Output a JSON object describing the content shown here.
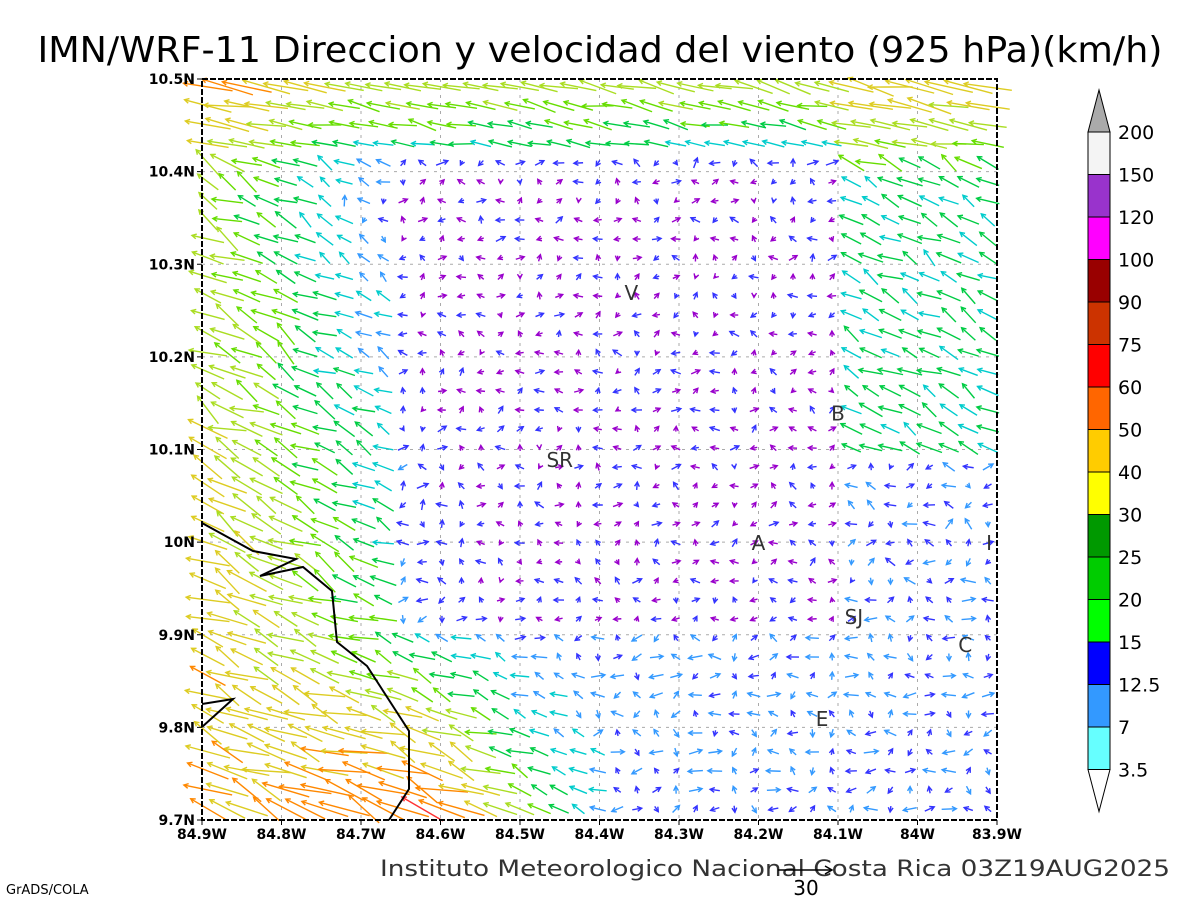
{
  "title": "IMN/WRF-11 Direccion y velocidad del viento (925 hPa)(km/h)",
  "footer": "Instituto Meteorologico Nacional Costa Rica  03Z19AUG2025",
  "credit": "GrADS/COLA",
  "reference_vector_label": "30",
  "x_ticks": [
    "84.9W",
    "84.8W",
    "84.7W",
    "84.6W",
    "84.5W",
    "84.4W",
    "84.3W",
    "84.2W",
    "84.1W",
    "84W",
    "83.9W"
  ],
  "y_ticks": [
    "10.5N",
    "10.4N",
    "10.3N",
    "10.2N",
    "10.1N",
    "10N",
    "9.9N",
    "9.8N",
    "9.7N"
  ],
  "places": [
    {
      "label": "V",
      "lon": -84.36,
      "lat": 10.27
    },
    {
      "label": "B",
      "lon": -84.1,
      "lat": 10.14
    },
    {
      "label": "SR",
      "lon": -84.45,
      "lat": 10.09
    },
    {
      "label": "A",
      "lon": -84.2,
      "lat": 10.0
    },
    {
      "label": "I",
      "lon": -83.91,
      "lat": 10.0
    },
    {
      "label": "SJ",
      "lon": -84.08,
      "lat": 9.92
    },
    {
      "label": "C",
      "lon": -83.94,
      "lat": 9.89
    },
    {
      "label": "E",
      "lon": -84.12,
      "lat": 9.81
    }
  ],
  "colorbar": {
    "labels": [
      "200",
      "150",
      "120",
      "100",
      "90",
      "75",
      "60",
      "50",
      "40",
      "30",
      "25",
      "20",
      "15",
      "12.5",
      "7",
      "3.5"
    ],
    "colors": [
      "#f4f4f4",
      "#9933cc",
      "#ff00ff",
      "#990000",
      "#cc3300",
      "#ff0000",
      "#ff6600",
      "#ffcc00",
      "#ffff00",
      "#009900",
      "#00cc00",
      "#00ff00",
      "#0000ff",
      "#3399ff",
      "#66ffff"
    ],
    "top_arrow_color": "#aaaaaa",
    "bottom_arrow_color": "#ffffff"
  }
}
